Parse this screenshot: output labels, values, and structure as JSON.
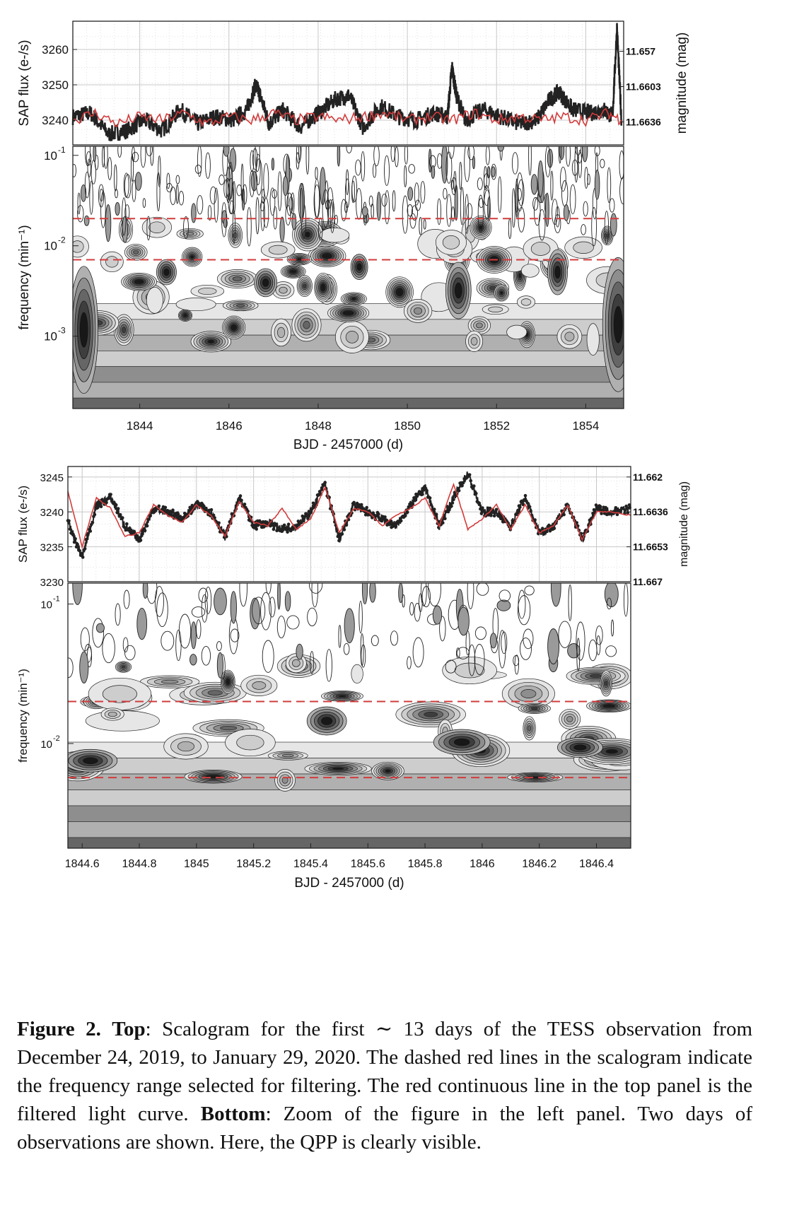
{
  "chart_data": [
    {
      "type": "line",
      "panel": "top",
      "xlabel": "BJD - 2457000 (d)",
      "xlim": [
        1842.5,
        1854.85
      ],
      "x_ticks": [
        1844,
        1846,
        1848,
        1850,
        1852,
        1854
      ],
      "x_tick_labels": [
        "1844",
        "1846",
        "1848",
        "1850",
        "1852",
        "1854"
      ],
      "lightcurve": {
        "ylabel": "SAP flux (e-/s)",
        "ylim": [
          3233,
          3268
        ],
        "y_ticks": [
          3240,
          3250,
          3260
        ],
        "y_tick_labels": [
          "3240",
          "3250",
          "3260"
        ],
        "right_label": "magnitude (mag)",
        "right_ticks": [
          3259.5,
          3249.5,
          3239.5
        ],
        "right_tick_labels": [
          "11.657",
          "11.6603",
          "11.6636"
        ],
        "series": [
          {
            "name": "SAP flux",
            "color": "#222222",
            "x": [
              1842.5,
              1842.9,
              1843.3,
              1843.7,
              1844.1,
              1844.5,
              1844.9,
              1845.3,
              1845.7,
              1846.1,
              1846.4,
              1846.6,
              1846.7,
              1846.9,
              1847.2,
              1847.6,
              1848.0,
              1848.4,
              1848.7,
              1849.0,
              1849.4,
              1849.8,
              1850.2,
              1850.6,
              1850.9,
              1851.0,
              1851.1,
              1851.3,
              1851.7,
              1852.1,
              1852.5,
              1852.9,
              1853.2,
              1853.4,
              1853.7,
              1854.1,
              1854.4,
              1854.6,
              1854.7,
              1854.8
            ],
            "y": [
              3241,
              3242,
              3236,
              3237,
              3240,
              3237,
              3243,
              3239,
              3241,
              3240,
              3243,
              3250,
              3247,
              3239,
              3243,
              3238,
              3242,
              3246,
              3247,
              3238,
              3244,
              3241,
              3240,
              3242,
              3241,
              3255,
              3247,
              3240,
              3243,
              3241,
              3239,
              3240,
              3246,
              3248,
              3243,
              3242,
              3243,
              3241,
              3266,
              3240
            ]
          },
          {
            "name": "filtered light curve",
            "color": "#d23c3c",
            "x": [
              1842.5,
              1843.0,
              1843.5,
              1844.0,
              1844.5,
              1845.0,
              1845.5,
              1846.0,
              1846.5,
              1847.0,
              1847.5,
              1848.0,
              1848.5,
              1849.0,
              1849.5,
              1850.0,
              1850.5,
              1851.0,
              1851.5,
              1852.0,
              1852.5,
              1853.0,
              1853.5,
              1854.0,
              1854.5,
              1854.8
            ],
            "y": [
              3240,
              3242,
              3239,
              3241,
              3240,
              3242,
              3239,
              3241,
              3240,
              3242,
              3240,
              3241,
              3240,
              3241,
              3242,
              3240,
              3241,
              3240,
              3242,
              3240,
              3241,
              3240,
              3241,
              3240,
              3242,
              3240
            ]
          }
        ]
      },
      "scalogram": {
        "ylabel": "frequency  (min⁻¹)",
        "y_tick_labels": [
          {
            "base": "10",
            "exp": "-1"
          },
          {
            "base": "10",
            "exp": "-2"
          },
          {
            "base": "10",
            "exp": "-3"
          }
        ],
        "y_tick_values": [
          0.1,
          0.01,
          0.001
        ],
        "ylim_log10": [
          -3.8,
          -0.9
        ],
        "dashed_lines_freq": [
          0.02,
          0.007
        ],
        "dashed_color": "#d23c3c"
      }
    },
    {
      "type": "line",
      "panel": "bottom",
      "xlabel": "BJD - 2457000 (d)",
      "xlim": [
        1844.55,
        1846.52
      ],
      "x_ticks": [
        1844.6,
        1844.8,
        1845.0,
        1845.2,
        1845.4,
        1845.6,
        1845.8,
        1846.0,
        1846.2,
        1846.4
      ],
      "x_tick_labels": [
        "1844.6",
        "1844.8",
        "1845",
        "1845.2",
        "1845.4",
        "1845.6",
        "1845.8",
        "1846",
        "1846.2",
        "1846.4"
      ],
      "lightcurve": {
        "ylabel": "SAP flux (e-/s)",
        "ylim": [
          3230,
          3246.5
        ],
        "y_ticks": [
          3230,
          3235,
          3240,
          3245
        ],
        "y_tick_labels": [
          "3230",
          "3235",
          "3240",
          "3245"
        ],
        "right_label": "magnitude (mag)",
        "right_ticks": [
          3230,
          3235,
          3240,
          3245
        ],
        "right_tick_labels": [
          "11.667",
          "11.6653",
          "11.6636",
          "11.662"
        ],
        "series": [
          {
            "name": "SAP flux",
            "color": "#222222",
            "x": [
              1844.55,
              1844.6,
              1844.65,
              1844.7,
              1844.75,
              1844.8,
              1844.85,
              1844.9,
              1844.95,
              1845.0,
              1845.05,
              1845.1,
              1845.15,
              1845.2,
              1845.25,
              1845.3,
              1845.35,
              1845.4,
              1845.45,
              1845.5,
              1845.55,
              1845.6,
              1845.65,
              1845.7,
              1845.75,
              1845.8,
              1845.85,
              1845.9,
              1845.95,
              1846.0,
              1846.05,
              1846.1,
              1846.15,
              1846.2,
              1846.25,
              1846.3,
              1846.35,
              1846.4,
              1846.45,
              1846.52
            ],
            "y": [
              3238.5,
              3233.5,
              3241,
              3242,
              3238,
              3236,
              3240.5,
              3240,
              3239,
              3241,
              3240,
              3236.5,
              3242,
              3238,
              3238.5,
              3237.5,
              3238,
              3240,
              3244,
              3236,
              3241,
              3240,
              3239,
              3238,
              3241,
              3243.5,
              3238,
              3242,
              3245.5,
              3240,
              3240,
              3238,
              3242,
              3237,
              3238,
              3241,
              3236,
              3240.5,
              3240,
              3240.5
            ]
          },
          {
            "name": "filtered light curve",
            "color": "#d23c3c",
            "x": [
              1844.55,
              1844.6,
              1844.65,
              1844.7,
              1844.75,
              1844.8,
              1844.85,
              1844.9,
              1844.95,
              1845.0,
              1845.05,
              1845.1,
              1845.15,
              1845.2,
              1845.25,
              1845.3,
              1845.35,
              1845.4,
              1845.45,
              1845.5,
              1845.55,
              1845.6,
              1845.65,
              1845.7,
              1845.75,
              1845.8,
              1845.85,
              1845.9,
              1845.95,
              1846.0,
              1846.05,
              1846.1,
              1846.15,
              1846.2,
              1846.25,
              1846.3,
              1846.35,
              1846.4,
              1846.45,
              1846.52
            ],
            "y": [
              3243,
              3235,
              3242,
              3240.5,
              3236.5,
              3237,
              3241,
              3239.5,
              3238.5,
              3241,
              3239.5,
              3236.5,
              3241.5,
              3238.5,
              3238,
              3240.5,
              3237.5,
              3239,
              3243.5,
              3237,
              3240.5,
              3240,
              3238,
              3239.5,
              3240.5,
              3242,
              3238,
              3244,
              3237.5,
              3239,
              3241,
              3237.5,
              3241,
              3237,
              3238,
              3241,
              3236,
              3240,
              3240,
              3239.5
            ]
          }
        ]
      },
      "scalogram": {
        "ylabel": "frequency  (min⁻¹)",
        "y_tick_labels": [
          {
            "base": "10",
            "exp": "-1"
          },
          {
            "base": "10",
            "exp": "-2"
          }
        ],
        "y_tick_values": [
          0.1,
          0.01
        ],
        "ylim_log10": [
          -2.75,
          -0.85
        ],
        "dashed_lines_freq": [
          0.02,
          0.0057
        ],
        "dashed_color": "#d23c3c"
      }
    }
  ],
  "caption": {
    "label": "Figure 2.",
    "top_label": "Top",
    "top_text": ": Scalogram for the first ∼ 13 days of the TESS observation from December 24, 2019, to January 29, 2020. The dashed red lines in the scalogram indicate the frequency range selected for filtering. The red continuous line in the top panel is the filtered light curve. ",
    "bottom_label": "Bottom",
    "bottom_text": ": Zoom of the figure in the left panel. Two days of observations are shown. Here, the QPP is clearly visible."
  }
}
